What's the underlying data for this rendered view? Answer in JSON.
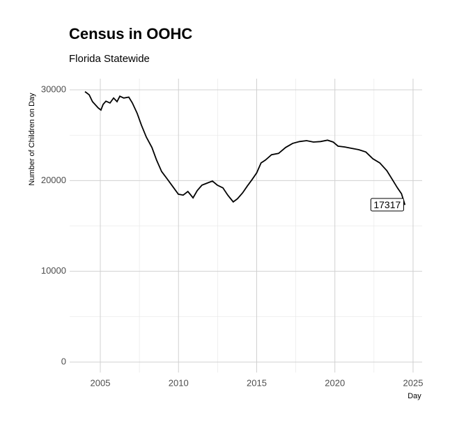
{
  "chart_data": {
    "type": "line",
    "title": "Census in OOHC",
    "subtitle": "Florida Statewide",
    "x_label": "Day",
    "y_label": "Number of Children on Day",
    "xlim": [
      2003.04,
      2025.58
    ],
    "xticks": [
      2005,
      2010,
      2015,
      2020,
      2025
    ],
    "ylim": [
      -1150,
      31230
    ],
    "yticks": [
      0,
      10000,
      20000,
      30000
    ],
    "grid": true,
    "series": [
      {
        "color": "#000000",
        "x": [
          2004.02,
          2004.29,
          2004.5,
          2004.87,
          2005.04,
          2005.18,
          2005.36,
          2005.62,
          2005.85,
          2006.07,
          2006.25,
          2006.5,
          2006.82,
          2007.05,
          2007.36,
          2007.63,
          2007.94,
          2008.3,
          2008.6,
          2008.92,
          2009.27,
          2009.63,
          2009.99,
          2010.3,
          2010.6,
          2010.93,
          2011.2,
          2011.5,
          2011.8,
          2012.17,
          2012.48,
          2012.84,
          2013.15,
          2013.5,
          2013.77,
          2014.1,
          2014.4,
          2014.7,
          2015.0,
          2015.28,
          2015.55,
          2015.95,
          2016.4,
          2016.85,
          2017.3,
          2017.74,
          2018.19,
          2018.63,
          2019.08,
          2019.53,
          2019.89,
          2020.2,
          2020.64,
          2021.09,
          2021.53,
          2021.98,
          2022.43,
          2022.87,
          2023.32,
          2023.68,
          2024.0,
          2024.26,
          2024.48
        ],
        "values": [
          29800,
          29450,
          28700,
          28000,
          27770,
          28400,
          28750,
          28550,
          29100,
          28700,
          29300,
          29100,
          29200,
          28550,
          27400,
          26100,
          24800,
          23650,
          22250,
          21000,
          20200,
          19350,
          18500,
          18400,
          18800,
          18100,
          18900,
          19500,
          19700,
          19950,
          19500,
          19200,
          18400,
          17650,
          18000,
          18650,
          19400,
          20100,
          20850,
          21950,
          22250,
          22850,
          23000,
          23650,
          24100,
          24300,
          24400,
          24250,
          24300,
          24450,
          24250,
          23800,
          23700,
          23550,
          23400,
          23150,
          22400,
          21950,
          21100,
          20100,
          19200,
          18550,
          17317
        ]
      }
    ]
  }
}
